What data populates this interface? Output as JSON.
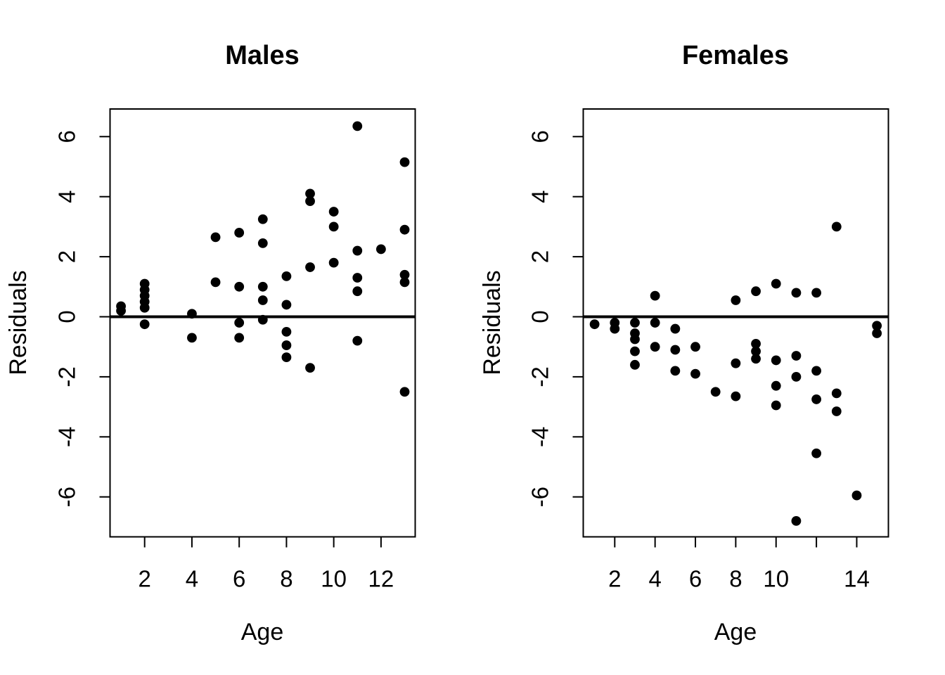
{
  "figure": {
    "background": "#ffffff",
    "foreground": "#000000"
  },
  "chart_data": [
    {
      "type": "scatter",
      "title": "Males",
      "xlabel": "Age",
      "ylabel": "Residuals",
      "marker": "filled-circle",
      "color": "#000000",
      "grid": false,
      "legend": null,
      "xlim": [
        0.5,
        13.5
      ],
      "ylim": [
        -7.35,
        6.95
      ],
      "x_ticks": [
        2,
        4,
        6,
        8,
        10,
        12
      ],
      "x_tick_labels": [
        "2",
        "4",
        "6",
        "8",
        "10",
        "12"
      ],
      "y_ticks": [
        -6,
        -4,
        -2,
        0,
        2,
        4,
        6
      ],
      "y_tick_labels": [
        "-6",
        "-4",
        "-2",
        "0",
        "2",
        "4",
        "6"
      ],
      "ref_line_y": 0,
      "points": [
        [
          1,
          0.35
        ],
        [
          1,
          0.2
        ],
        [
          2,
          1.1
        ],
        [
          2,
          0.9
        ],
        [
          2,
          0.7
        ],
        [
          2,
          0.5
        ],
        [
          2,
          0.3
        ],
        [
          2,
          -0.25
        ],
        [
          4,
          0.1
        ],
        [
          4,
          -0.7
        ],
        [
          5,
          2.65
        ],
        [
          5,
          1.15
        ],
        [
          6,
          2.8
        ],
        [
          6,
          1.0
        ],
        [
          6,
          -0.2
        ],
        [
          6,
          -0.7
        ],
        [
          7,
          3.25
        ],
        [
          7,
          2.45
        ],
        [
          7,
          1.0
        ],
        [
          7,
          0.55
        ],
        [
          7,
          -0.1
        ],
        [
          8,
          1.35
        ],
        [
          8,
          0.4
        ],
        [
          8,
          -0.5
        ],
        [
          8,
          -0.95
        ],
        [
          8,
          -1.35
        ],
        [
          9,
          4.1
        ],
        [
          9,
          3.85
        ],
        [
          9,
          1.65
        ],
        [
          9,
          -1.7
        ],
        [
          10,
          3.5
        ],
        [
          10,
          3.0
        ],
        [
          10,
          1.8
        ],
        [
          11,
          6.35
        ],
        [
          11,
          2.2
        ],
        [
          11,
          1.3
        ],
        [
          11,
          0.85
        ],
        [
          11,
          -0.8
        ],
        [
          12,
          2.25
        ],
        [
          13,
          5.15
        ],
        [
          13,
          2.9
        ],
        [
          13,
          1.4
        ],
        [
          13,
          1.15
        ],
        [
          13,
          -2.5
        ]
      ]
    },
    {
      "type": "scatter",
      "title": "Females",
      "xlabel": "Age",
      "ylabel": "Residuals",
      "marker": "filled-circle",
      "color": "#000000",
      "grid": false,
      "legend": null,
      "xlim": [
        0.45,
        15.55
      ],
      "ylim": [
        -7.35,
        6.95
      ],
      "x_ticks": [
        2,
        4,
        6,
        8,
        10,
        12,
        14
      ],
      "x_tick_labels": [
        "2",
        "4",
        "6",
        "8",
        "10",
        "",
        "14"
      ],
      "y_ticks": [
        -6,
        -4,
        -2,
        0,
        2,
        4,
        6
      ],
      "y_tick_labels": [
        "-6",
        "-4",
        "-2",
        "0",
        "2",
        "4",
        "6"
      ],
      "ref_line_y": 0,
      "points": [
        [
          1,
          -0.25
        ],
        [
          2,
          -0.2
        ],
        [
          2,
          -0.4
        ],
        [
          3,
          -0.2
        ],
        [
          3,
          -0.55
        ],
        [
          3,
          -0.75
        ],
        [
          3,
          -1.15
        ],
        [
          3,
          -1.6
        ],
        [
          4,
          0.7
        ],
        [
          4,
          -0.2
        ],
        [
          4,
          -1.0
        ],
        [
          5,
          -0.4
        ],
        [
          5,
          -1.1
        ],
        [
          5,
          -1.8
        ],
        [
          6,
          -1.0
        ],
        [
          6,
          -1.9
        ],
        [
          7,
          -2.5
        ],
        [
          8,
          0.55
        ],
        [
          8,
          -1.55
        ],
        [
          8,
          -2.65
        ],
        [
          9,
          0.85
        ],
        [
          9,
          -0.9
        ],
        [
          9,
          -1.15
        ],
        [
          9,
          -1.4
        ],
        [
          10,
          1.1
        ],
        [
          10,
          -1.45
        ],
        [
          10,
          -2.3
        ],
        [
          10,
          -2.95
        ],
        [
          11,
          0.8
        ],
        [
          11,
          -1.3
        ],
        [
          11,
          -2.0
        ],
        [
          11,
          -6.8
        ],
        [
          12,
          0.8
        ],
        [
          12,
          -1.8
        ],
        [
          12,
          -2.75
        ],
        [
          12,
          -4.55
        ],
        [
          13,
          3.0
        ],
        [
          13,
          -2.55
        ],
        [
          13,
          -3.15
        ],
        [
          14,
          -5.95
        ],
        [
          15,
          -0.3
        ],
        [
          15,
          -0.55
        ]
      ]
    }
  ]
}
